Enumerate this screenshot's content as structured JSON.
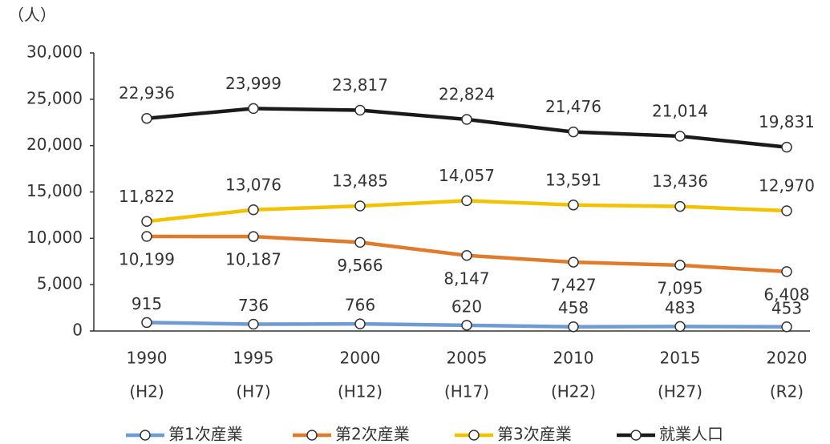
{
  "chart_data": {
    "type": "line",
    "ylabel": "（人）",
    "categories": [
      [
        "1990",
        "(H2)"
      ],
      [
        "1995",
        "(H7)"
      ],
      [
        "2000",
        "(H12)"
      ],
      [
        "2005",
        "(H17)"
      ],
      [
        "2010",
        "(H22)"
      ],
      [
        "2015",
        "(H27)"
      ],
      [
        "2020",
        "(R2)"
      ]
    ],
    "ylim": [
      0,
      30000
    ],
    "yticks": [
      0,
      {
        "value": 5000,
        "label": "5,000"
      },
      {
        "value": 10000,
        "label": "10,000"
      },
      {
        "value": 15000,
        "label": "15,000"
      },
      {
        "value": 20000,
        "label": "20,000"
      },
      {
        "value": 25000,
        "label": "25,000"
      },
      {
        "value": 30000,
        "label": "30,000"
      }
    ],
    "grid": false,
    "legend": "bottom",
    "series": [
      {
        "name": "第1次産業",
        "color": "#6f9bd4",
        "values": [
          915,
          736,
          766,
          620,
          458,
          483,
          453
        ],
        "value_labels": [
          "915",
          "736",
          "766",
          "620",
          "458",
          "483",
          "453"
        ]
      },
      {
        "name": "第2次産業",
        "color": "#e07b2e",
        "values": [
          10199,
          10187,
          9566,
          8147,
          7427,
          7095,
          6408
        ],
        "value_labels": [
          "10,199",
          "10,187",
          "9,566",
          "8,147",
          "7,427",
          "7,095",
          "6,408"
        ]
      },
      {
        "name": "第3次産業",
        "color": "#f2c200",
        "values": [
          11822,
          13076,
          13485,
          14057,
          13591,
          13436,
          12970
        ],
        "value_labels": [
          "11,822",
          "13,076",
          "13,485",
          "14,057",
          "13,591",
          "13,436",
          "12,970"
        ]
      },
      {
        "name": "就業人口",
        "color": "#1a1a1a",
        "values": [
          22936,
          23999,
          23817,
          22824,
          21476,
          21014,
          19831
        ],
        "value_labels": [
          "22,936",
          "23,999",
          "23,817",
          "22,824",
          "21,476",
          "21,014",
          "19,831"
        ]
      }
    ]
  }
}
